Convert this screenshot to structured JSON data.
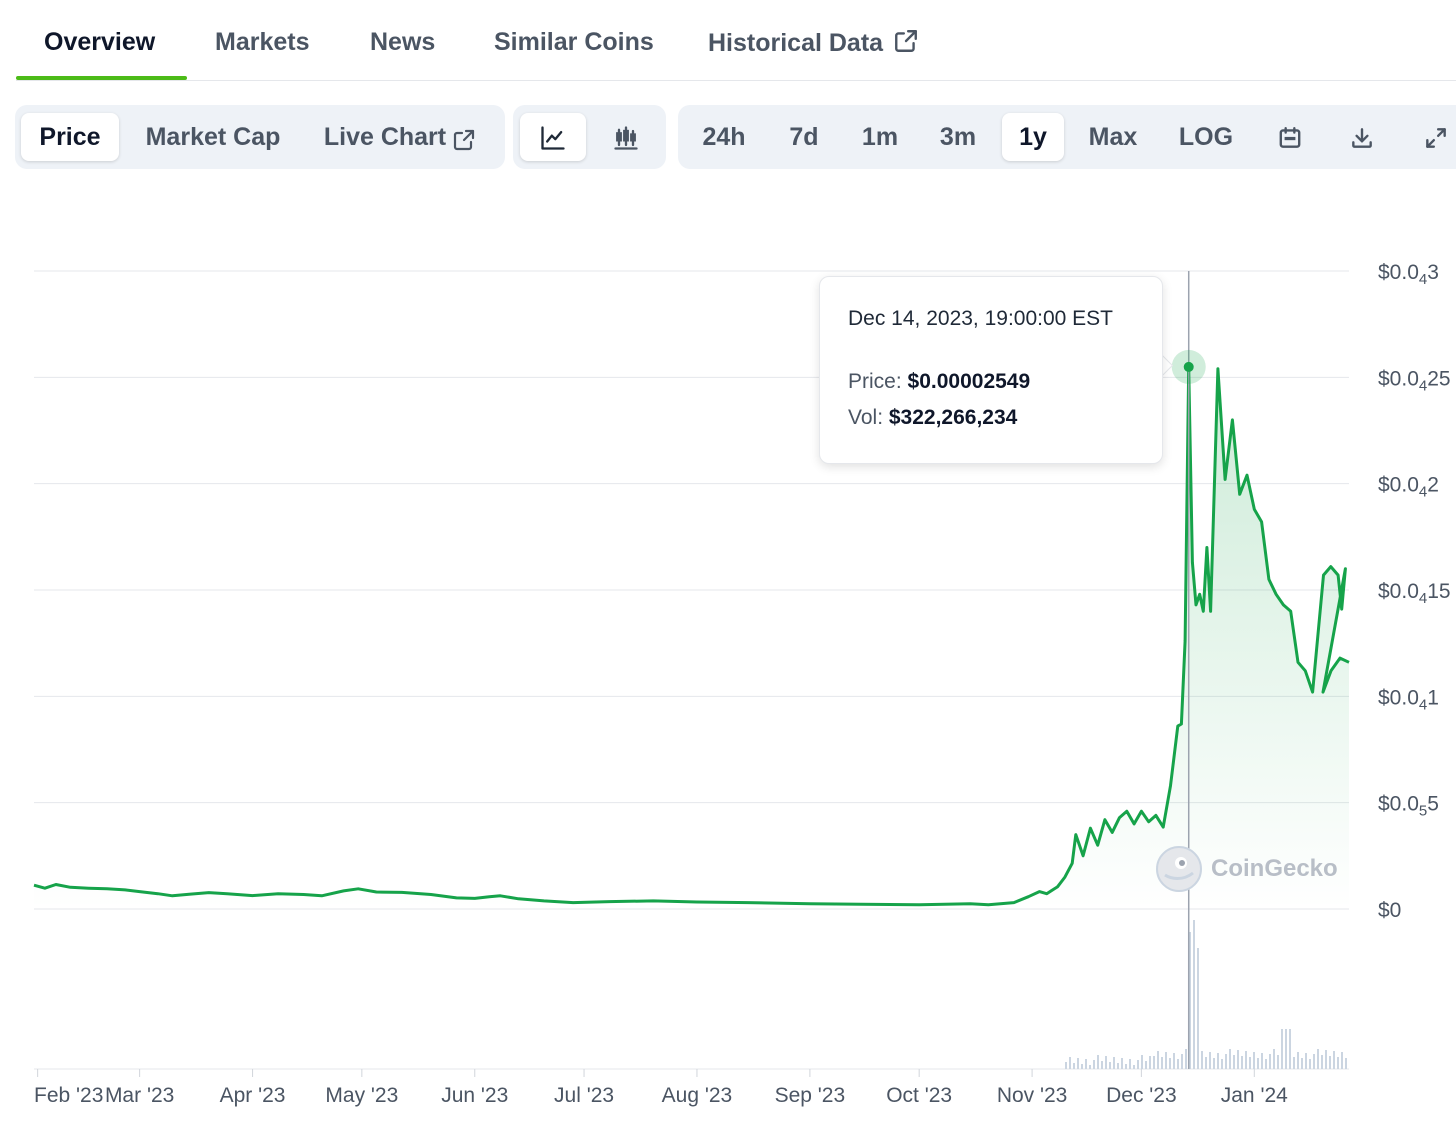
{
  "tabs": [
    "Overview",
    "Markets",
    "News",
    "Similar Coins",
    "Historical Data"
  ],
  "view_tabs": [
    "Price",
    "Market Cap",
    "Live Chart"
  ],
  "chart_style_buttons": [
    "line-chart-icon",
    "candlestick-icon"
  ],
  "ranges": [
    "24h",
    "7d",
    "1m",
    "3m",
    "1y",
    "Max",
    "LOG"
  ],
  "selected_view": "Price",
  "selected_range": "1y",
  "tooltip": {
    "date": "Dec 14, 2023, 19:00:00 EST",
    "price_label": "Price:",
    "price_value": "$0.00002549",
    "vol_label": "Vol:",
    "vol_value": "$322,266,234"
  },
  "watermark": "CoinGecko",
  "colors": {
    "line": "#16a34a",
    "accent": "#4cbb17"
  },
  "chart_data": {
    "type": "area",
    "title": "",
    "xlabel": "",
    "ylabel": "",
    "x_ticks": [
      "Feb '23",
      "Mar '23",
      "Apr '23",
      "May '23",
      "Jun '23",
      "Jul '23",
      "Aug '23",
      "Sep '23",
      "Oct '23",
      "Nov '23",
      "Dec '23",
      "Jan '24"
    ],
    "y_ticks": [
      {
        "value": 3e-05,
        "label": "$0.0",
        "sub": "4",
        "tail": "3"
      },
      {
        "value": 2.5e-05,
        "label": "$0.0",
        "sub": "4",
        "tail": "25"
      },
      {
        "value": 2e-05,
        "label": "$0.0",
        "sub": "4",
        "tail": "2"
      },
      {
        "value": 1.5e-05,
        "label": "$0.0",
        "sub": "4",
        "tail": "15"
      },
      {
        "value": 1e-05,
        "label": "$0.0",
        "sub": "4",
        "tail": "1"
      },
      {
        "value": 5e-06,
        "label": "$0.0",
        "sub": "5",
        "tail": "5"
      },
      {
        "value": 0,
        "label": "$0",
        "sub": "",
        "tail": ""
      }
    ],
    "ylim": [
      0,
      3e-05
    ],
    "xlim": [
      "2023-01-31",
      "2024-01-27"
    ],
    "grid": true,
    "highlight": {
      "x": "2023-12-14",
      "y": 2.549e-05
    },
    "series": [
      {
        "values": [
          [
            "2023-01-31",
            1.12e-06
          ],
          [
            "2023-02-03",
            9.8e-07
          ],
          [
            "2023-02-06",
            1.15e-06
          ],
          [
            "2023-02-10",
            1.02e-06
          ],
          [
            "2023-02-15",
            9.8e-07
          ],
          [
            "2023-02-20",
            9.5e-07
          ],
          [
            "2023-02-25",
            9e-07
          ],
          [
            "2023-03-01",
            8.2e-07
          ],
          [
            "2023-03-06",
            7.2e-07
          ],
          [
            "2023-03-10",
            6.2e-07
          ],
          [
            "2023-03-15",
            7e-07
          ],
          [
            "2023-03-20",
            7.7e-07
          ],
          [
            "2023-03-25",
            7.2e-07
          ],
          [
            "2023-04-01",
            6.3e-07
          ],
          [
            "2023-04-08",
            7.2e-07
          ],
          [
            "2023-04-15",
            6.8e-07
          ],
          [
            "2023-04-20",
            6.2e-07
          ],
          [
            "2023-04-26",
            8.5e-07
          ],
          [
            "2023-04-30",
            9.5e-07
          ],
          [
            "2023-05-05",
            8e-07
          ],
          [
            "2023-05-12",
            7.8e-07
          ],
          [
            "2023-05-20",
            6.8e-07
          ],
          [
            "2023-05-27",
            5.2e-07
          ],
          [
            "2023-06-01",
            5e-07
          ],
          [
            "2023-06-05",
            5.8e-07
          ],
          [
            "2023-06-08",
            6.2e-07
          ],
          [
            "2023-06-13",
            4.8e-07
          ],
          [
            "2023-06-20",
            3.8e-07
          ],
          [
            "2023-06-28",
            3e-07
          ],
          [
            "2023-07-08",
            3.5e-07
          ],
          [
            "2023-07-20",
            3.8e-07
          ],
          [
            "2023-08-01",
            3.3e-07
          ],
          [
            "2023-08-15",
            3e-07
          ],
          [
            "2023-09-01",
            2.5e-07
          ],
          [
            "2023-09-15",
            2.2e-07
          ],
          [
            "2023-10-01",
            2e-07
          ],
          [
            "2023-10-15",
            2.5e-07
          ],
          [
            "2023-10-20",
            2e-07
          ],
          [
            "2023-10-27",
            3e-07
          ],
          [
            "2023-10-31",
            5.8e-07
          ],
          [
            "2023-11-03",
            8.2e-07
          ],
          [
            "2023-11-05",
            7.2e-07
          ],
          [
            "2023-11-08",
            1.05e-06
          ],
          [
            "2023-11-10",
            1.5e-06
          ],
          [
            "2023-11-12",
            2.15e-06
          ],
          [
            "2023-11-13",
            3.5e-06
          ],
          [
            "2023-11-15",
            2.5e-06
          ],
          [
            "2023-11-17",
            3.8e-06
          ],
          [
            "2023-11-19",
            3e-06
          ],
          [
            "2023-11-21",
            4.2e-06
          ],
          [
            "2023-11-23",
            3.6e-06
          ],
          [
            "2023-11-25",
            4.3e-06
          ],
          [
            "2023-11-27",
            4.6e-06
          ],
          [
            "2023-11-29",
            4e-06
          ],
          [
            "2023-12-01",
            4.6e-06
          ],
          [
            "2023-12-03",
            4.1e-06
          ],
          [
            "2023-12-05",
            4.4e-06
          ],
          [
            "2023-12-07",
            3.85e-06
          ],
          [
            "2023-12-09",
            5.8e-06
          ],
          [
            "2023-12-11",
            8.6e-06
          ],
          [
            "2023-12-12",
            8.7e-06
          ],
          [
            "2023-12-13",
            1.26e-05
          ],
          [
            "2023-12-14",
            2.549e-05
          ],
          [
            "2023-12-15",
            1.63e-05
          ],
          [
            "2023-12-16",
            1.43e-05
          ],
          [
            "2023-12-17",
            1.48e-05
          ],
          [
            "2023-12-18",
            1.4e-05
          ],
          [
            "2023-12-19",
            1.7e-05
          ],
          [
            "2023-12-20",
            1.4e-05
          ],
          [
            "2023-12-22",
            2.54e-05
          ],
          [
            "2023-12-24",
            2.02e-05
          ],
          [
            "2023-12-26",
            2.3e-05
          ],
          [
            "2023-12-28",
            1.95e-05
          ],
          [
            "2023-12-30",
            2.04e-05
          ],
          [
            "2024-01-01",
            1.88e-05
          ],
          [
            "2024-01-03",
            1.82e-05
          ],
          [
            "2024-01-05",
            1.55e-05
          ],
          [
            "2024-01-07",
            1.48e-05
          ],
          [
            "2024-01-09",
            1.43e-05
          ],
          [
            "2024-01-11",
            1.4e-05
          ],
          [
            "2024-01-13",
            1.16e-05
          ],
          [
            "2024-01-15",
            1.12e-05
          ],
          [
            "2024-01-17",
            1.02e-05
          ],
          [
            "2024-01-20",
            1.57e-05
          ],
          [
            "2024-01-22",
            1.61e-05
          ],
          [
            "2024-01-24",
            1.57e-05
          ],
          [
            "2024-01-25",
            1.41e-05
          ],
          [
            "2024-01-26",
            1.6e-05
          ],
          [
            "2024-01-27",
            1.6e-05
          ],
          [
            "2024-01-27",
            1.39e-05
          ],
          [
            "2024-01-27",
            1.21e-05
          ],
          [
            "2024-01-27",
            1.03e-05
          ]
        ]
      }
    ]
  }
}
